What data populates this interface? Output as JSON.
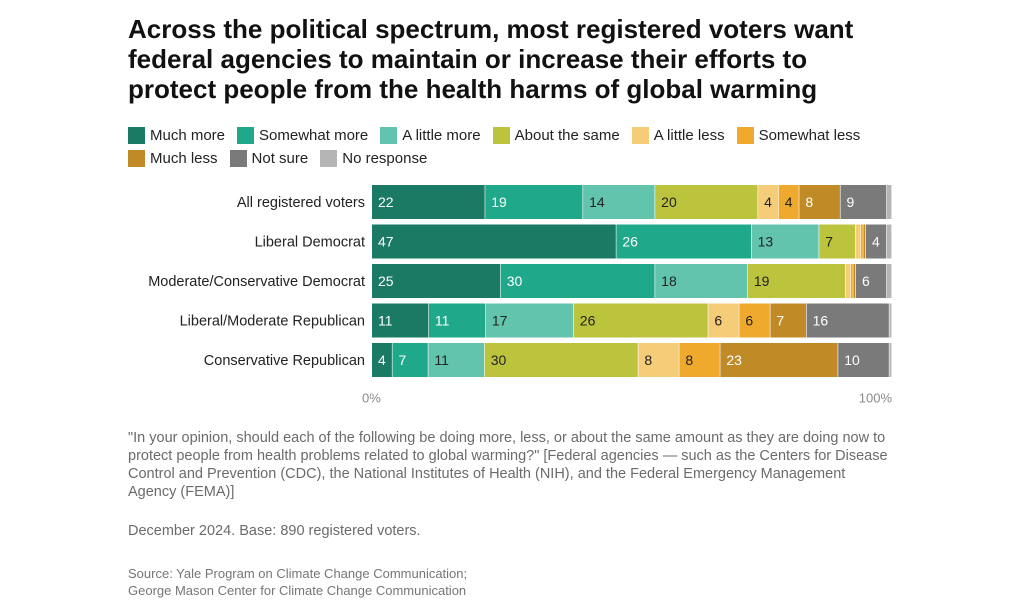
{
  "title": "Across the political spectrum, most registered voters want federal agencies to maintain or increase their efforts to protect people from the health harms of global warming",
  "colors": {
    "Much more": "#1b7a63",
    "Somewhat more": "#1fa98a",
    "A little more": "#63c4ad",
    "About the same": "#bcc33d",
    "A little less": "#f5cd78",
    "Somewhat less": "#efaa2e",
    "Much less": "#c08a26",
    "Not sure": "#7a7a7a",
    "No response": "#b5b5b5"
  },
  "label_colors": {
    "Much more": "#ffffff",
    "Somewhat more": "#ffffff",
    "A little more": "#222222",
    "About the same": "#222222",
    "A little less": "#222222",
    "Somewhat less": "#222222",
    "Much less": "#ffffff",
    "Not sure": "#ffffff",
    "No response": "#222222"
  },
  "chart_data": {
    "type": "bar",
    "orientation": "horizontal",
    "stacked": true,
    "categories": [
      "All registered voters",
      "Liberal Democrat",
      "Moderate/Conservative Democrat",
      "Liberal/Moderate Republican",
      "Conservative Republican"
    ],
    "series": [
      {
        "name": "Much more",
        "values": [
          22,
          47,
          25,
          11,
          4
        ]
      },
      {
        "name": "Somewhat more",
        "values": [
          19,
          26,
          30,
          11,
          7
        ]
      },
      {
        "name": "A little more",
        "values": [
          14,
          13,
          18,
          17,
          11
        ]
      },
      {
        "name": "About the same",
        "values": [
          20,
          7,
          19,
          26,
          30
        ]
      },
      {
        "name": "A little less",
        "values": [
          4,
          1,
          1,
          6,
          8
        ]
      },
      {
        "name": "Somewhat less",
        "values": [
          4,
          0.5,
          0.5,
          6,
          8
        ]
      },
      {
        "name": "Much less",
        "values": [
          8,
          0.5,
          0.5,
          7,
          23
        ]
      },
      {
        "name": "Not sure",
        "values": [
          9,
          4,
          6,
          16,
          10
        ]
      },
      {
        "name": "No response",
        "values": [
          1,
          1,
          1,
          0.5,
          0.5
        ]
      }
    ],
    "data_labels": [
      [
        "22",
        "19",
        "14",
        "20",
        "4",
        "4",
        "8",
        "9",
        ""
      ],
      [
        "47",
        "26",
        "13",
        "7",
        "",
        "",
        "",
        "4",
        ""
      ],
      [
        "25",
        "30",
        "18",
        "19",
        "",
        "",
        "",
        "6",
        ""
      ],
      [
        "11",
        "11",
        "17",
        "26",
        "6",
        "6",
        "7",
        "16",
        ""
      ],
      [
        "4",
        "7",
        "11",
        "30",
        "8",
        "8",
        "23",
        "10",
        ""
      ]
    ],
    "xlim": [
      0,
      100
    ],
    "x_tick_labels": [
      "0%",
      "100%"
    ],
    "legend_position": "top"
  },
  "notes": {
    "question": "\"In your opinion, should each of the following be doing more, less, or about the same amount as they are doing now to protect people from health problems related to global warming?\" [Federal agencies — such as the Centers for Disease Control and Prevention (CDC), the National Institutes of Health (NIH), and the Federal Emergency Management Agency (FEMA)]",
    "base": "December 2024. Base: 890 registered voters.",
    "source_line1": "Source: Yale Program on Climate Change Communication;",
    "source_line2": "George Mason Center for Climate Change Communication"
  }
}
